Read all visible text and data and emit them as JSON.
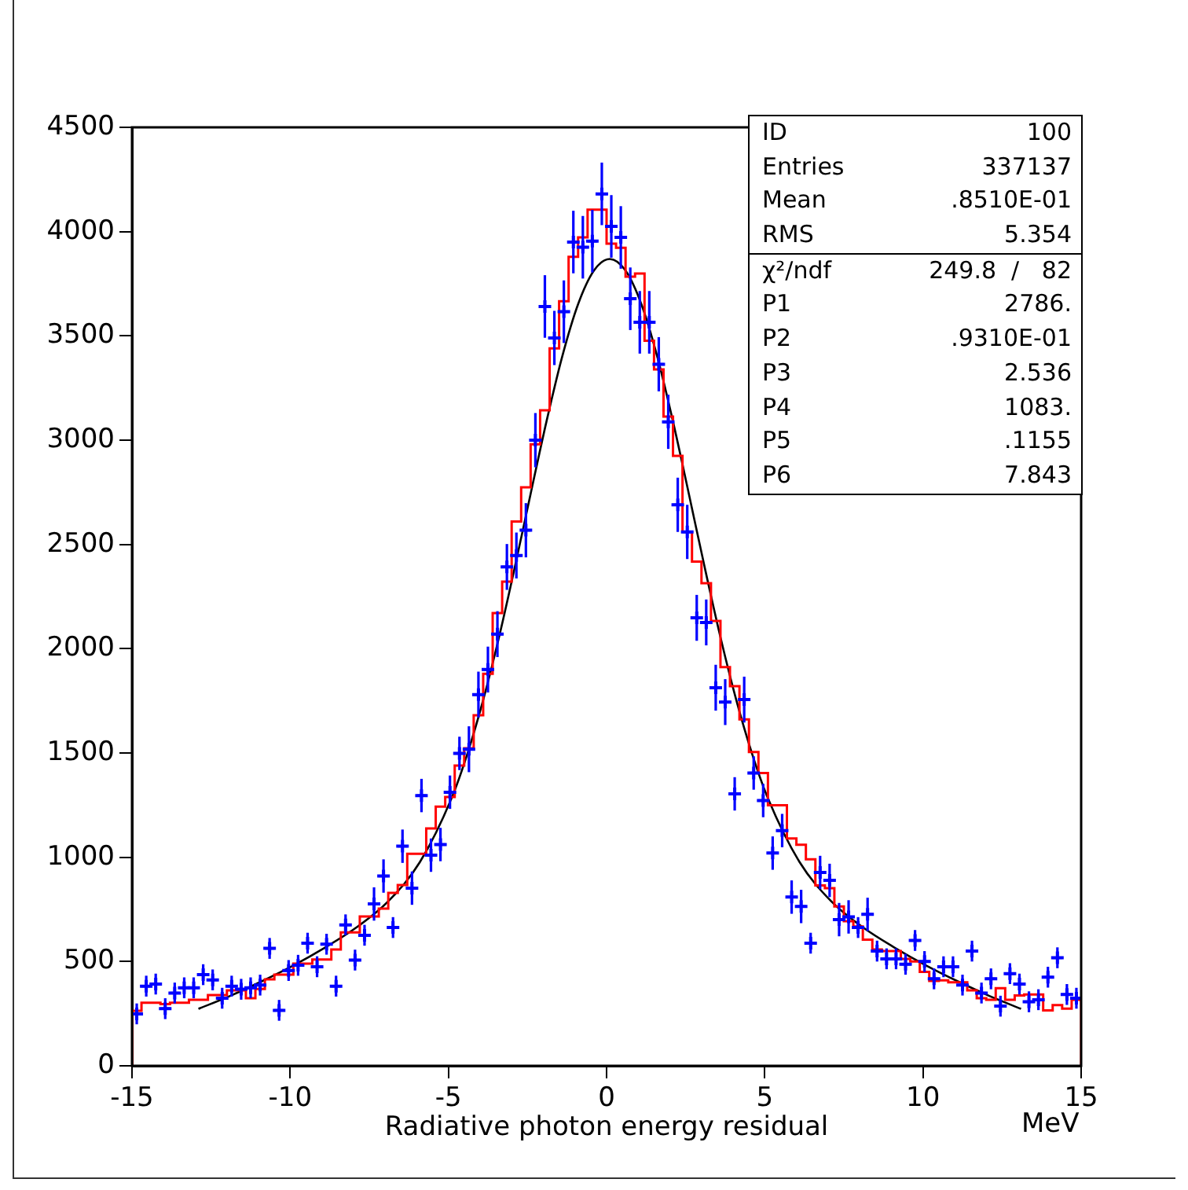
{
  "chart_data": {
    "type": "histogram",
    "xlabel": "Radiative photon energy residual",
    "xlim": [
      -15,
      15
    ],
    "xticks": [
      -15,
      -10,
      -5,
      0,
      5,
      10,
      15
    ],
    "ylim": [
      0,
      4500
    ],
    "yticks": [
      0,
      500,
      1000,
      1500,
      2000,
      2500,
      3000,
      3500,
      4000,
      4500
    ],
    "bins": [
      -15,
      -14.7,
      -14.4,
      -14.1,
      -13.8,
      -13.5,
      -13.2,
      -12.9,
      -12.6,
      -12.3,
      -12,
      -11.7,
      -11.4,
      -11.1,
      -10.8,
      -10.5,
      -10.2,
      -9.9,
      -9.6,
      -9.3,
      -9,
      -8.7,
      -8.4,
      -8.1,
      -7.8,
      -7.5,
      -7.2,
      -6.9,
      -6.6,
      -6.3,
      -6,
      -5.7,
      -5.4,
      -5.1,
      -4.8,
      -4.5,
      -4.2,
      -3.9,
      -3.6,
      -3.3,
      -3,
      -2.7,
      -2.4,
      -2.1,
      -1.8,
      -1.5,
      -1.2,
      -0.9,
      -0.6,
      -0.3,
      0,
      0.3,
      0.6,
      0.9,
      1.2,
      1.5,
      1.8,
      2.1,
      2.4,
      2.7,
      3,
      3.3,
      3.6,
      3.9,
      4.2,
      4.5,
      4.8,
      5.1,
      5.4,
      5.7,
      6,
      6.3,
      6.6,
      6.9,
      7.2,
      7.5,
      7.8,
      8.1,
      8.4,
      8.7,
      9,
      9.3,
      9.6,
      9.9,
      10.2,
      10.5,
      10.8,
      11.1,
      11.4,
      11.7,
      12,
      12.3,
      12.6,
      12.9,
      13.2,
      13.5,
      13.8,
      14.1,
      14.4,
      14.7,
      15
    ],
    "series": [
      {
        "type": "histogram",
        "color": "#ff0000",
        "values": [
          264,
          302,
          302,
          296,
          302,
          302,
          317,
          317,
          339,
          339,
          362,
          362,
          324,
          368,
          415,
          437,
          437,
          490,
          490,
          510,
          510,
          558,
          640,
          640,
          716,
          716,
          754,
          829,
          867,
          1017,
          1017,
          1138,
          1243,
          1289,
          1440,
          1523,
          1681,
          1880,
          2171,
          2322,
          2610,
          2774,
          2980,
          3143,
          3440,
          3666,
          3879,
          3972,
          4105,
          4105,
          3942,
          3922,
          3784,
          3799,
          3477,
          3339,
          3113,
          2925,
          2560,
          2418,
          2314,
          2133,
          1912,
          1820,
          1661,
          1505,
          1404,
          1249,
          1249,
          1090,
          1060,
          990,
          865,
          852,
          764,
          693,
          668,
          605,
          558,
          550,
          550,
          513,
          500,
          450,
          407,
          410,
          400,
          400,
          362,
          324,
          317,
          372,
          317,
          337,
          342,
          342,
          266,
          291,
          274,
          317
        ]
      },
      {
        "type": "scatter",
        "color": "#0000ff",
        "marker": "cross",
        "x": [
          -14.85,
          -14.55,
          -14.25,
          -13.95,
          -13.65,
          -13.35,
          -13.05,
          -12.75,
          -12.45,
          -12.15,
          -11.85,
          -11.55,
          -11.25,
          -10.95,
          -10.65,
          -10.35,
          -10.05,
          -9.75,
          -9.45,
          -9.15,
          -8.85,
          -8.55,
          -8.25,
          -7.95,
          -7.65,
          -7.35,
          -7.05,
          -6.75,
          -6.45,
          -6.15,
          -5.85,
          -5.55,
          -5.25,
          -4.95,
          -4.65,
          -4.35,
          -4.05,
          -3.75,
          -3.45,
          -3.15,
          -2.85,
          -2.55,
          -2.25,
          -1.95,
          -1.65,
          -1.35,
          -1.05,
          -0.75,
          -0.45,
          -0.15,
          0.15,
          0.45,
          0.75,
          1.05,
          1.35,
          1.65,
          1.95,
          2.25,
          2.55,
          2.85,
          3.15,
          3.45,
          3.75,
          4.05,
          4.35,
          4.65,
          4.95,
          5.25,
          5.55,
          5.85,
          6.15,
          6.45,
          6.75,
          7.05,
          7.35,
          7.65,
          7.95,
          8.25,
          8.55,
          8.85,
          9.15,
          9.45,
          9.75,
          10.05,
          10.35,
          10.65,
          10.95,
          11.25,
          11.55,
          11.85,
          12.15,
          12.45,
          12.75,
          13.05,
          13.35,
          13.65,
          13.95,
          14.25,
          14.55,
          14.85
        ],
        "values": [
          249,
          382,
          392,
          274,
          349,
          374,
          374,
          437,
          412,
          324,
          382,
          367,
          374,
          387,
          563,
          266,
          457,
          482,
          588,
          475,
          583,
          382,
          676,
          507,
          626,
          776,
          910,
          663,
          1053,
          852,
          1296,
          1010,
          1061,
          1312,
          1498,
          1518,
          1780,
          1900,
          2070,
          2392,
          2447,
          2568,
          3000,
          3641,
          3490,
          3616,
          3950,
          3925,
          3954,
          4181,
          4025,
          3972,
          3678,
          3565,
          3565,
          3364,
          3088,
          2690,
          2560,
          2148,
          2126,
          1813,
          1744,
          1304,
          1756,
          1404,
          1272,
          1020,
          1128,
          809,
          764,
          588,
          927,
          889,
          701,
          714,
          663,
          726,
          550,
          513,
          513,
          487,
          601,
          500,
          417,
          475,
          475,
          387,
          550,
          349,
          417,
          286,
          442,
          392,
          307,
          317,
          425,
          518,
          342,
          324
        ],
        "errors": [
          50,
          50,
          50,
          50,
          50,
          50,
          50,
          50,
          50,
          50,
          50,
          50,
          50,
          50,
          50,
          50,
          50,
          50,
          50,
          50,
          50,
          50,
          50,
          50,
          50,
          80,
          80,
          50,
          80,
          80,
          80,
          80,
          80,
          80,
          80,
          110,
          110,
          110,
          110,
          110,
          110,
          130,
          130,
          150,
          130,
          150,
          150,
          150,
          150,
          150,
          150,
          150,
          150,
          150,
          150,
          130,
          130,
          130,
          130,
          110,
          110,
          110,
          110,
          80,
          110,
          80,
          80,
          80,
          80,
          80,
          80,
          50,
          80,
          80,
          80,
          80,
          50,
          80,
          50,
          50,
          50,
          50,
          50,
          50,
          50,
          50,
          50,
          50,
          50,
          50,
          50,
          50,
          50,
          50,
          50,
          50,
          50,
          50,
          50,
          50
        ],
        "xerrors": [
          0.15,
          0.15,
          0.15,
          0.15,
          0.15,
          0.15,
          0.15,
          0.15,
          0.15,
          0.15,
          0.15,
          0.15,
          0.15,
          0.15,
          0.15,
          0.15,
          0.15,
          0.15,
          0.15,
          0.15,
          0.15,
          0.15,
          0.15,
          0.15,
          0.15,
          0.15,
          0.15,
          0.15,
          0.15,
          0.15,
          0.15,
          0.15,
          0.15,
          0.15,
          0.15,
          0.15,
          0.15,
          0.15,
          0.15,
          0.15,
          0.15,
          0.15,
          0.15,
          0.15,
          0.15,
          0.15,
          0.15,
          0.15,
          0.15,
          0.15,
          0.15,
          0.15,
          0.15,
          0.15,
          0.15,
          0.15,
          0.15,
          0.15,
          0.15,
          0.15,
          0.15,
          0.15,
          0.15,
          0.15,
          0.15,
          0.15,
          0.15,
          0.15,
          0.15,
          0.15,
          0.15,
          0.15,
          0.15,
          0.15,
          0.15,
          0.15,
          0.15,
          0.15,
          0.15,
          0.15,
          0.15,
          0.15,
          0.15,
          0.15,
          0.15,
          0.15,
          0.15,
          0.15,
          0.15,
          0.15,
          0.15,
          0.15,
          0.15,
          0.15,
          0.15,
          0.15,
          0.15,
          0.15,
          0.15,
          0.15
        ]
      },
      {
        "type": "line",
        "color": "#000000",
        "line_style": "solid",
        "x": [
          -12.9,
          -11.9,
          -10.9,
          -9.9,
          -8.9,
          -7.9,
          -6.9,
          -5.9,
          -4.9,
          -4.4,
          -3.9,
          -3.4,
          -2.9,
          -2.4,
          -1.9,
          -1.4,
          -0.9,
          -0.4,
          0.1,
          0.6,
          1.1,
          1.6,
          2.1,
          2.6,
          3.1,
          3.6,
          4.1,
          4.6,
          5.1,
          6.1,
          7.1,
          8.1,
          9.1,
          10.1,
          11.1,
          12.1,
          13.1
        ],
        "values": [
          273,
          335,
          405,
          481,
          567,
          664,
          789,
          977,
          1283,
          1496,
          1754,
          2055,
          2391,
          2743,
          3089,
          3402,
          3652,
          3813,
          3869,
          3813,
          3652,
          3402,
          3089,
          2743,
          2391,
          2055,
          1754,
          1496,
          1283,
          977,
          789,
          664,
          567,
          481,
          405,
          335,
          273
        ]
      }
    ],
    "annotations": [
      "ID",
      "100",
      "Entries",
      "337137",
      "Mean",
      ".8510E-01",
      "RMS",
      "5.354",
      "χ²/ndf",
      "249.8  /   82",
      "P1",
      "2786.",
      "P2",
      ".9310E-01",
      "P3",
      "2.536",
      "P4",
      "1083.",
      "P5",
      ".1155",
      "P6",
      "7.843",
      "MeV"
    ]
  }
}
